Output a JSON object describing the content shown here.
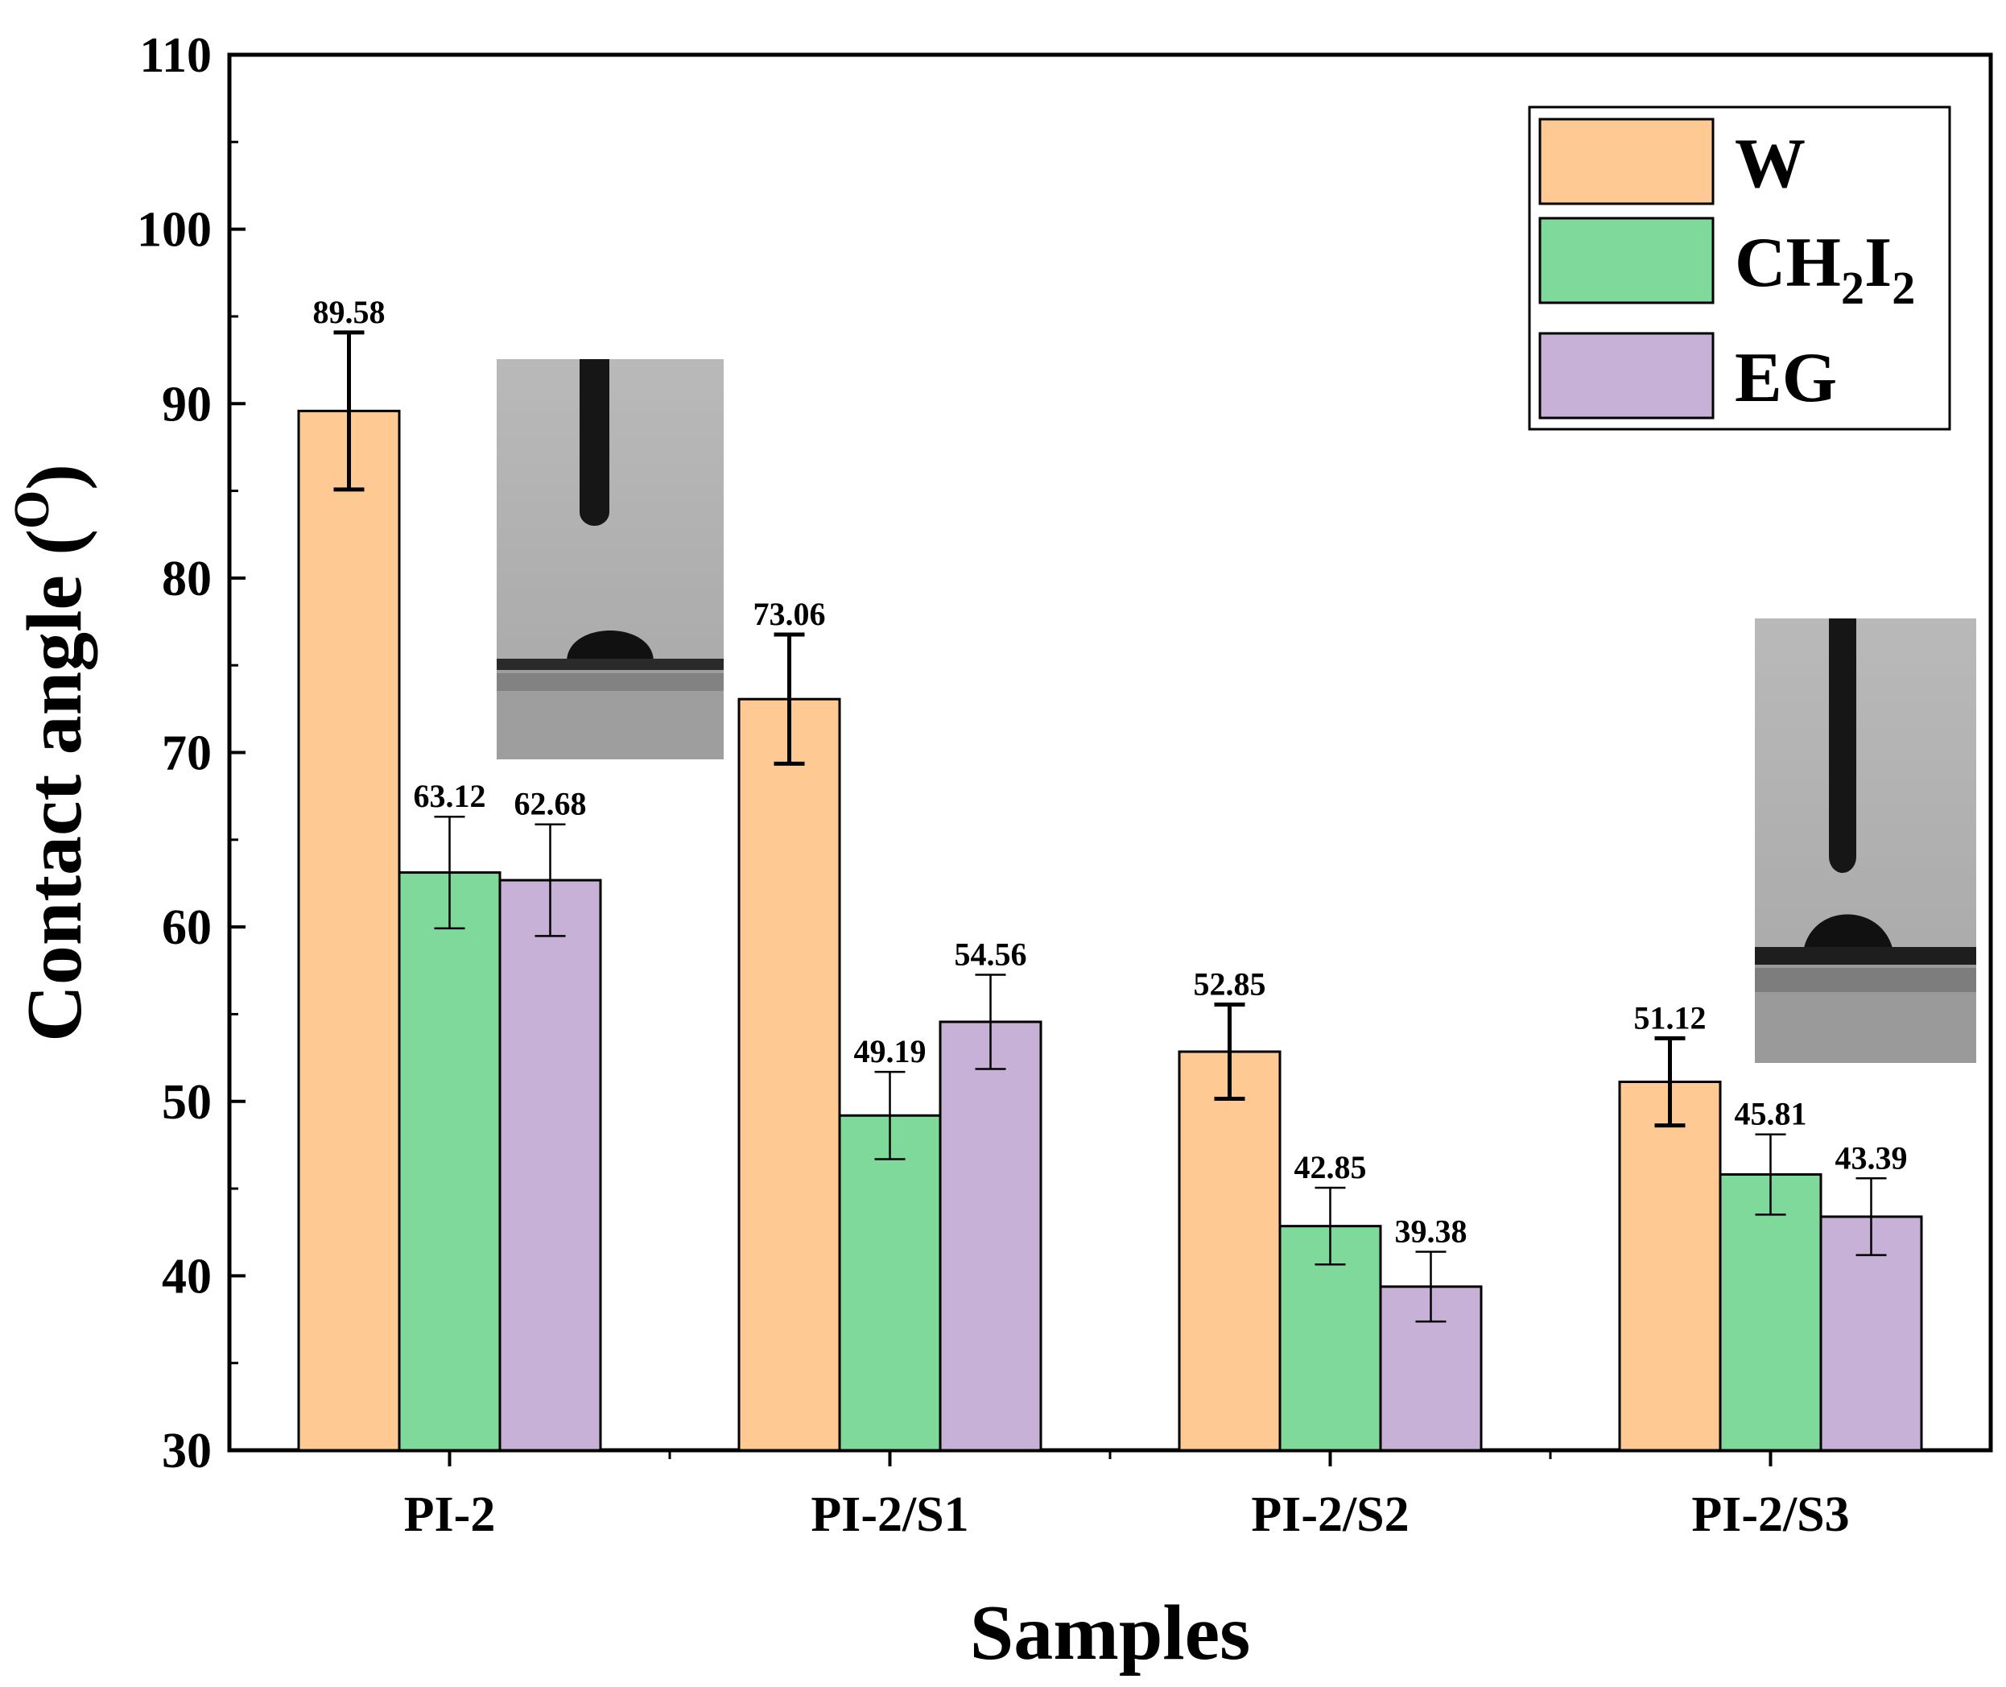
{
  "chart_data": {
    "type": "bar",
    "title": "",
    "xlabel": "Samples",
    "ylabel": "Contact angle",
    "ylabel_superscript": "O",
    "ylim": [
      30,
      110
    ],
    "yticks": [
      30,
      40,
      50,
      60,
      70,
      80,
      90,
      100,
      110
    ],
    "categories": [
      "PI-2",
      "PI-2/S1",
      "PI-2/S2",
      "PI-2/S3"
    ],
    "series": [
      {
        "name": "W",
        "color": "#FFC993",
        "values": [
          89.58,
          73.06,
          52.85,
          51.12
        ],
        "errors": [
          4.5,
          3.7,
          2.7,
          2.5
        ],
        "labels": [
          "89.58",
          "73.06",
          "52.85",
          "51.12"
        ]
      },
      {
        "name": "CH2I2",
        "name_parts": [
          "CH",
          "2",
          "I",
          "2"
        ],
        "color": "#7FD99A",
        "values": [
          63.12,
          49.19,
          42.85,
          45.81
        ],
        "errors": [
          3.2,
          2.5,
          2.2,
          2.3
        ],
        "labels": [
          "63.12",
          "49.19",
          "42.85",
          "45.81"
        ]
      },
      {
        "name": "EG",
        "color": "#C8B1D6",
        "values": [
          62.68,
          54.56,
          39.38,
          43.39
        ],
        "errors": [
          3.2,
          2.7,
          2.0,
          2.2
        ],
        "labels": [
          "62.68",
          "54.56",
          "39.38",
          "43.39"
        ]
      }
    ],
    "legend_position": "top-right",
    "insets": [
      {
        "name": "water-droplet-photo-pi-2",
        "near": "PI-2"
      },
      {
        "name": "water-droplet-photo-pi-2-s3",
        "near": "PI-2/S3"
      }
    ]
  }
}
